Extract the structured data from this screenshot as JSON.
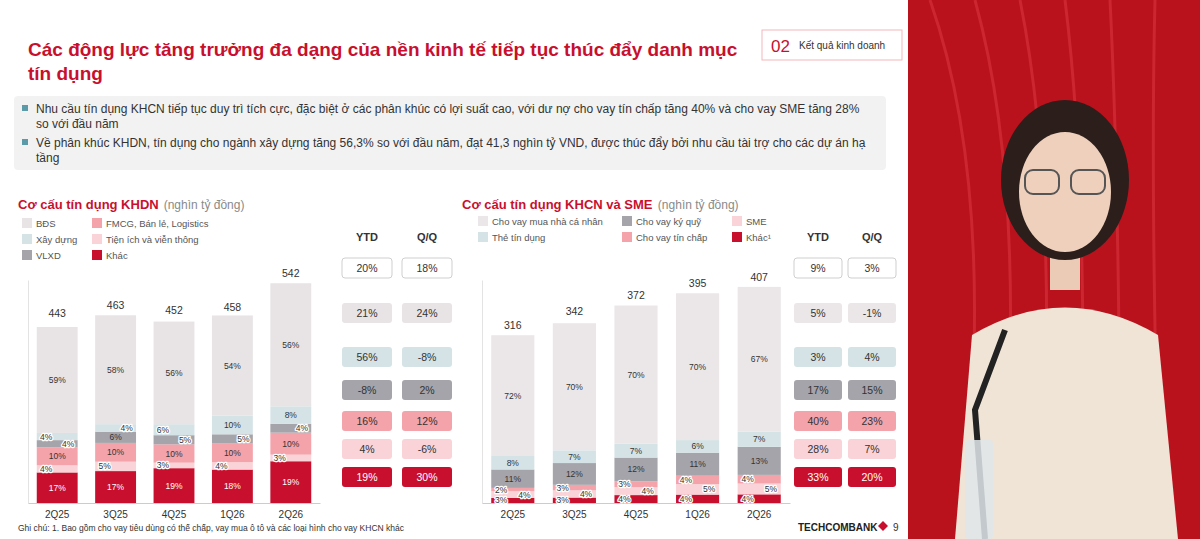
{
  "header": {
    "title": "Các động lực tăng trưởng đa dạng của nền kinh tế tiếp tục thúc đẩy danh mục tín dụng",
    "section_number": "02",
    "section": "Kết quả kinh doanh"
  },
  "bullets": [
    "Nhu cầu tín dụng KHCN tiếp tục duy trì tích cực, đặc biệt ở các phân khúc có lợi suất cao, với dư nợ cho vay tín chấp tăng 40% và cho vay SME tăng 28% so với đầu năm",
    "Về phân khúc KHDN, tín dụng cho ngành xây dựng tăng 56,3% so với đầu năm, đạt 41,3 nghìn tỷ VND, được thúc đẩy bởi nhu cầu tài trợ cho các dự án hạ tầng"
  ],
  "chart_data": [
    {
      "type": "bar",
      "stacked": true,
      "data_labels": true,
      "legend": "top",
      "tick_labels": "x",
      "title": "Cơ cấu tín dụng KHDN",
      "subtitle": "(nghìn tỷ đồng)",
      "categories": [
        "2Q25",
        "3Q25",
        "4Q25",
        "1Q26",
        "2Q26"
      ],
      "totals": [
        443,
        463,
        452,
        458,
        542
      ],
      "ylim": [
        0,
        550
      ],
      "table_columns": [
        "YTD",
        "Q/Q"
      ],
      "total_ytd": {
        "value": 20,
        "label": "20%"
      },
      "total_qoq": {
        "value": 18,
        "label": "18%"
      },
      "series": [
        {
          "name": "BĐS",
          "color": "#e8e4e6",
          "values": [
            59,
            58,
            56,
            54,
            56
          ],
          "value_labels": [
            "59%",
            "58%",
            "56%",
            "54%",
            "56%"
          ],
          "ytd": {
            "value": 21,
            "label": "21%"
          },
          "qoq": {
            "value": 24,
            "label": "24%"
          }
        },
        {
          "name": "Xây dựng",
          "color": "#d5e3e6",
          "values": [
            4,
            4,
            6,
            10,
            8
          ],
          "value_labels": [
            "4%",
            "4%",
            "6%",
            "10%",
            "8%"
          ],
          "ytd": {
            "value": 56,
            "label": "56%"
          },
          "qoq": {
            "value": -8,
            "label": "-8%"
          }
        },
        {
          "name": "VLXD",
          "color": "#a5a4aa",
          "values": [
            4,
            6,
            5,
            5,
            4
          ],
          "value_labels": [
            "4%",
            "6%",
            "5%",
            "5%",
            "4%"
          ],
          "ytd": {
            "value": -8,
            "label": "-8%"
          },
          "qoq": {
            "value": 2,
            "label": "2%"
          }
        },
        {
          "name": "FMCG, Bán lẻ, Logistics",
          "color": "#f4a3ab",
          "values": [
            10,
            10,
            10,
            10,
            10
          ],
          "value_labels": [
            "10%",
            "10%",
            "10%",
            "10%",
            "10%"
          ],
          "ytd": {
            "value": 16,
            "label": "16%"
          },
          "qoq": {
            "value": 12,
            "label": "12%"
          }
        },
        {
          "name": "Tiện ích và viễn thông",
          "color": "#f9d3d7",
          "values": [
            4,
            5,
            3,
            4,
            3
          ],
          "value_labels": [
            "4%",
            "5%",
            "3%",
            "4%",
            "3%"
          ],
          "ytd": {
            "value": 4,
            "label": "4%"
          },
          "qoq": {
            "value": -6,
            "label": "-6%"
          }
        },
        {
          "name": "Khác",
          "color": "#c8102e",
          "values": [
            17,
            17,
            19,
            18,
            19
          ],
          "value_labels": [
            "17%",
            "17%",
            "19%",
            "18%",
            "19%"
          ],
          "ytd": {
            "value": 19,
            "label": "19%"
          },
          "qoq": {
            "value": 30,
            "label": "30%"
          }
        }
      ]
    },
    {
      "type": "bar",
      "stacked": true,
      "data_labels": true,
      "legend": "top",
      "tick_labels": "x",
      "title": "Cơ cấu tín dụng KHCN và SME",
      "subtitle": "(nghìn tỷ đồng)",
      "categories": [
        "2Q25",
        "3Q25",
        "4Q25",
        "1Q26",
        "2Q26"
      ],
      "totals": [
        316,
        342,
        372,
        395,
        407
      ],
      "ylim": [
        0,
        420
      ],
      "table_columns": [
        "YTD",
        "Q/Q"
      ],
      "total_ytd": {
        "value": 9,
        "label": "9%"
      },
      "total_qoq": {
        "value": 3,
        "label": "3%"
      },
      "series": [
        {
          "name": "Cho vay mua nhà cá nhân",
          "color": "#ebe7e9",
          "values": [
            72,
            70,
            70,
            70,
            67
          ],
          "value_labels": [
            "72%",
            "70%",
            "70%",
            "70%",
            "67%"
          ],
          "ytd": {
            "value": 5,
            "label": "5%"
          },
          "qoq": {
            "value": -1,
            "label": "-1%"
          }
        },
        {
          "name": "Thẻ tín dụng",
          "color": "#d5e3e6",
          "values": [
            8,
            7,
            7,
            6,
            7
          ],
          "value_labels": [
            "8%",
            "7%",
            "7%",
            "6%",
            "7%"
          ],
          "ytd": {
            "value": 3,
            "label": "3%"
          },
          "qoq": {
            "value": 4,
            "label": "4%"
          }
        },
        {
          "name": "Cho vay ký quỹ",
          "color": "#a5a4aa",
          "values": [
            11,
            12,
            12,
            11,
            13
          ],
          "value_labels": [
            "11%",
            "12%",
            "12%",
            "11%",
            "13%"
          ],
          "ytd": {
            "value": 17,
            "label": "17%"
          },
          "qoq": {
            "value": 15,
            "label": "15%"
          }
        },
        {
          "name": "Cho vay tín chấp",
          "color": "#f4a3ab",
          "values": [
            2,
            3,
            3,
            4,
            4
          ],
          "value_labels": [
            "2%",
            "3%",
            "3%",
            "4%",
            "4%"
          ],
          "ytd": {
            "value": 40,
            "label": "40%"
          },
          "qoq": {
            "value": 23,
            "label": "23%"
          }
        },
        {
          "name": "SME",
          "color": "#f9d3d7",
          "values": [
            4,
            4,
            4,
            5,
            5
          ],
          "value_labels": [
            "4%",
            "4%",
            "4%",
            "5%",
            "5%"
          ],
          "ytd": {
            "value": 28,
            "label": "28%"
          },
          "qoq": {
            "value": 7,
            "label": "7%"
          }
        },
        {
          "name": "Khác¹",
          "color": "#c8102e",
          "values": [
            3,
            3,
            4,
            4,
            4
          ],
          "value_labels": [
            "3%",
            "3%",
            "4%",
            "4%",
            "4%"
          ],
          "ytd": {
            "value": 33,
            "label": "33%"
          },
          "qoq": {
            "value": 20,
            "label": "20%"
          }
        }
      ]
    }
  ],
  "footnote": "Ghi chú: 1. Bao gồm cho vay tiêu dùng có thế chấp, vay mua ô tô và các loại hình cho vay KHCN khác",
  "brand": "TECHCOMBANK",
  "page": "9"
}
